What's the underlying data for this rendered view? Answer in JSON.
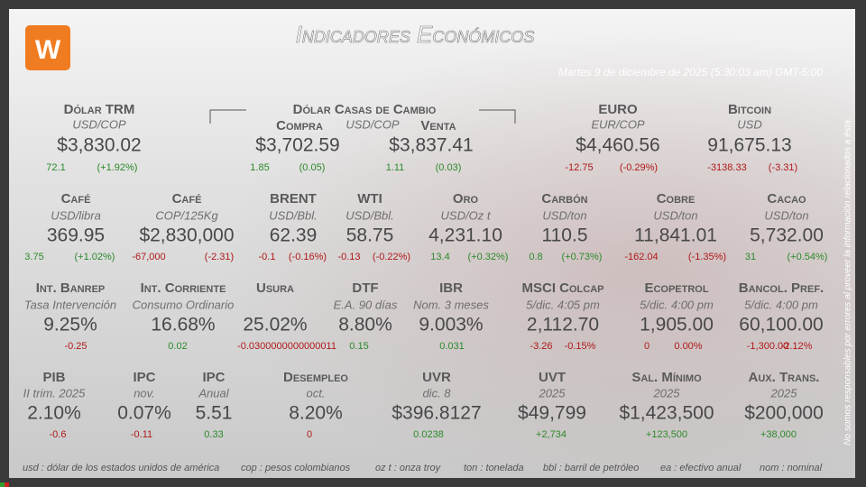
{
  "header": {
    "title": "Indicadores Económicos",
    "datetime": "Martes 9 de diciembre de 2025 (5:30:03 am) GMT-5:00"
  },
  "side_note": "No somos responsables por errores al proveer la información relacionados a ésta.",
  "rows": [
    {
      "cells": [
        {
          "name": "Dólar TRM",
          "unit": "USD/COP",
          "value": "$3,830.02",
          "change": "72.1",
          "pct": "(+1.92%)"
        },
        {
          "name": "Dólar Casas de Cambio",
          "unit": "USD/COP",
          "parts": [
            {
              "name": "Compra",
              "value": "$3,702.59",
              "change": "1.85",
              "pct": "(0.05)"
            },
            {
              "name": "Venta",
              "value": "$3,837.41",
              "change": "1.11",
              "pct": "(0.03)"
            }
          ]
        },
        {
          "name": "EURO",
          "unit": "EUR/COP",
          "value": "$4,460.56",
          "change": "-12.75",
          "pct": "(-0.29%)"
        },
        {
          "name": "Bitcoin",
          "unit": "USD",
          "value": "91,675.13",
          "change": "-3138.33",
          "pct": "(-3.31)"
        }
      ]
    },
    {
      "cells": [
        {
          "name": "Café",
          "unit": "USD/libra",
          "value": "369.95",
          "change": "3.75",
          "pct": "(+1.02%)"
        },
        {
          "name": "Café",
          "unit": "COP/125Kg",
          "value": "$2,830,000",
          "change": "-67,000",
          "pct": "(-2.31)"
        },
        {
          "name": "BRENT",
          "unit": "USD/Bbl.",
          "value": "62.39",
          "change": "-0.1",
          "pct": "(-0.16%)"
        },
        {
          "name": "WTI",
          "unit": "USD/Bbl.",
          "value": "58.75",
          "change": "-0.13",
          "pct": "(-0.22%)"
        },
        {
          "name": "Oro",
          "unit": "USD/Oz t",
          "value": "4,231.10",
          "change": "13.4",
          "pct": "(+0.32%)"
        },
        {
          "name": "Carbón",
          "unit": "USD/ton",
          "value": "110.5",
          "change": "0.8",
          "pct": "(+0.73%)"
        },
        {
          "name": "Cobre",
          "unit": "USD/ton",
          "value": "11,841.01",
          "change": "-162.04",
          "pct": "(-1.35%)"
        },
        {
          "name": "Cacao",
          "unit": "USD/ton",
          "value": "5,732.00",
          "change": "31",
          "pct": "(+0.54%)"
        }
      ]
    },
    {
      "cells": [
        {
          "name": "Int. Banrep",
          "unit": "Tasa Intervención",
          "value": "9.25%",
          "change": "-0.25"
        },
        {
          "name": "Int. Corriente",
          "unit": "Consumo Ordinario",
          "value": "16.68%",
          "change": "0.02"
        },
        {
          "name": "Usura",
          "value": "25.02%",
          "change": "-0.0300000000000011"
        },
        {
          "name": "DTF",
          "unit": "E.A. 90 días",
          "value": "8.80%",
          "change": "0.15"
        },
        {
          "name": "IBR",
          "unit": "Nom. 3 meses",
          "value": "9.003%",
          "change": "0.031"
        },
        {
          "name": "MSCI Colcap",
          "unit": "5/dic. 4:05 pm",
          "value": "2,112.70",
          "change": "-3.26",
          "pct": "-0.15%"
        },
        {
          "name": "Ecopetrol",
          "unit": "5/dic. 4:00 pm",
          "value": "1,905.00",
          "change": "0",
          "pct": "0.00%"
        },
        {
          "name": "Bancol. Pref.",
          "unit": "5/dic. 4:00 pm",
          "value": "60,100.00",
          "change": "-1,300.00",
          "pct": "-2.12%"
        }
      ]
    },
    {
      "cells": [
        {
          "name": "PIB",
          "unit": "II trim. 2025",
          "value": "2.10%",
          "change": "-0.6"
        },
        {
          "name": "IPC",
          "unit": "nov.",
          "value": "0.07%",
          "change": "-0.11"
        },
        {
          "name": "IPC",
          "unit": "Anual",
          "value": "5.51",
          "change": "0.33"
        },
        {
          "name": "Desempleo",
          "unit": "oct.",
          "value": "8.20%",
          "change": "0"
        },
        {
          "name": "UVR",
          "unit": "dic. 8",
          "value": "$396.8127",
          "change": "0.0238"
        },
        {
          "name": "UVT",
          "unit": "2025",
          "value": "$49,799",
          "change": "+2,734"
        },
        {
          "name": "Sal. Mínimo",
          "unit": "2025",
          "value": "$1,423,500",
          "change": "+123,500"
        },
        {
          "name": "Aux. Trans.",
          "unit": "2025",
          "value": "$200,000",
          "change": "+38,000"
        }
      ]
    }
  ],
  "footer": [
    "usd : dólar de los estados unidos de américa",
    "cop : pesos colombianos",
    "oz t : onza troy",
    "ton : tonelada",
    "bbl : barril de petróleo",
    "ea : efectivo anual",
    "nom : nominal"
  ]
}
